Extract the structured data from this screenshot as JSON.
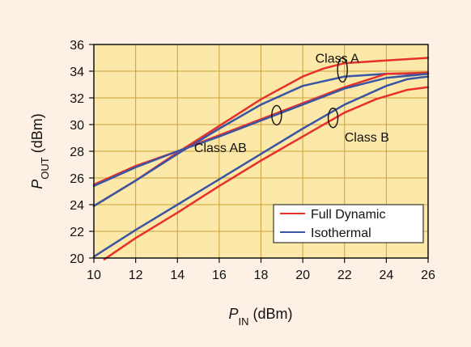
{
  "chart_data": {
    "type": "line",
    "xlabel": {
      "main": "P",
      "sub": "IN",
      "unit": " (dBm)"
    },
    "ylabel": {
      "main": "P",
      "sub": "OUT",
      "unit": " (dBm)"
    },
    "xlim": [
      10,
      26
    ],
    "ylim": [
      20,
      36
    ],
    "xticks": [
      10,
      12,
      14,
      16,
      18,
      20,
      22,
      24,
      26
    ],
    "yticks": [
      20,
      22,
      24,
      26,
      28,
      30,
      32,
      34,
      36
    ],
    "grid": true,
    "legend_position": "bottom-right",
    "colors": {
      "plot_bg": "#fce8a8",
      "page_bg": "#fdf1e6",
      "full_dynamic": "#e8302a",
      "isothermal": "#3a55a4",
      "grid": "#c9a13a"
    },
    "legend": [
      {
        "series": "full_dynamic",
        "label": "Full Dynamic"
      },
      {
        "series": "isothermal",
        "label": "Isothermal"
      }
    ],
    "annotations": [
      {
        "text": "Class A",
        "x": 20.6,
        "y": 35.0
      },
      {
        "text": "Class AB",
        "x": 14.8,
        "y": 28.3
      },
      {
        "text": "Class B",
        "x": 22.0,
        "y": 29.1
      }
    ],
    "series": [
      {
        "name": "Full Dynamic",
        "class": "Class A",
        "color_key": "full_dynamic",
        "x": [
          10,
          12,
          14,
          16,
          18,
          20,
          21,
          22,
          24,
          26
        ],
        "y": [
          23.9,
          25.8,
          27.9,
          29.9,
          31.9,
          33.6,
          34.2,
          34.6,
          34.8,
          35.0
        ]
      },
      {
        "name": "Isothermal",
        "class": "Class A",
        "color_key": "isothermal",
        "x": [
          10,
          12,
          14,
          16,
          18,
          20,
          22,
          24,
          26
        ],
        "y": [
          23.9,
          25.8,
          27.8,
          29.7,
          31.5,
          32.9,
          33.6,
          33.8,
          33.8
        ]
      },
      {
        "name": "Full Dynamic",
        "class": "Class AB",
        "color_key": "full_dynamic",
        "x": [
          10,
          12,
          14,
          16,
          18,
          20,
          22,
          24,
          26
        ],
        "y": [
          25.5,
          26.9,
          28.0,
          29.2,
          30.4,
          31.6,
          32.8,
          33.8,
          33.9
        ]
      },
      {
        "name": "Isothermal",
        "class": "Class AB",
        "color_key": "isothermal",
        "x": [
          10,
          12,
          14,
          16,
          18,
          20,
          22,
          24,
          26
        ],
        "y": [
          25.4,
          26.8,
          28.0,
          29.1,
          30.3,
          31.5,
          32.7,
          33.5,
          33.8
        ]
      },
      {
        "name": "Full Dynamic",
        "class": "Class B",
        "color_key": "full_dynamic",
        "x": [
          10.5,
          12,
          14,
          16,
          18,
          20,
          22,
          23.5,
          25,
          26
        ],
        "y": [
          19.9,
          21.5,
          23.4,
          25.4,
          27.3,
          29.1,
          30.9,
          31.9,
          32.6,
          32.8
        ]
      },
      {
        "name": "Isothermal",
        "class": "Class B",
        "color_key": "isothermal",
        "x": [
          10,
          12,
          14,
          16,
          18,
          20,
          22,
          24,
          25,
          26
        ],
        "y": [
          20.1,
          22.1,
          24.0,
          25.9,
          27.8,
          29.7,
          31.5,
          32.9,
          33.4,
          33.6
        ]
      }
    ]
  }
}
